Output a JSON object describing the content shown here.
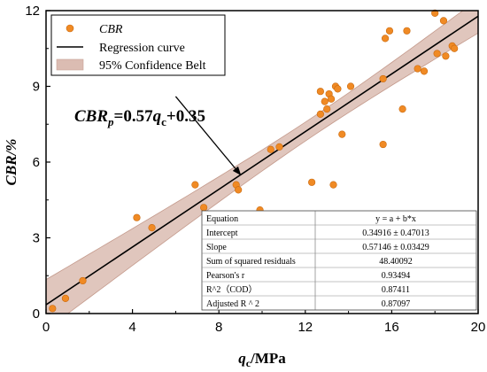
{
  "chart_data": {
    "type": "scatter",
    "title": "",
    "xlabel_main": "q",
    "xlabel_sub": "c",
    "xlabel_unit": "/MPa",
    "ylabel": "CBR/%",
    "xlim": [
      0,
      20
    ],
    "ylim": [
      0,
      12
    ],
    "xticks": [
      0,
      4,
      8,
      12,
      16,
      20
    ],
    "yticks": [
      0,
      3,
      6,
      9,
      12
    ],
    "legend_position": "top-left",
    "series": [
      {
        "name": "CBR",
        "kind": "scatter",
        "color": "#f08a24",
        "points": [
          [
            0.3,
            0.2
          ],
          [
            0.9,
            0.6
          ],
          [
            1.7,
            1.3
          ],
          [
            4.2,
            3.8
          ],
          [
            4.9,
            3.4
          ],
          [
            6.9,
            5.1
          ],
          [
            7.3,
            4.2
          ],
          [
            8.8,
            5.1
          ],
          [
            8.9,
            4.9
          ],
          [
            9.9,
            4.1
          ],
          [
            10.4,
            6.5
          ],
          [
            10.8,
            6.6
          ],
          [
            12.3,
            5.2
          ],
          [
            12.7,
            7.9
          ],
          [
            12.7,
            8.8
          ],
          [
            12.9,
            8.4
          ],
          [
            13.0,
            8.1
          ],
          [
            13.1,
            8.7
          ],
          [
            13.2,
            8.5
          ],
          [
            13.3,
            5.1
          ],
          [
            13.4,
            9.0
          ],
          [
            13.5,
            8.9
          ],
          [
            13.7,
            7.1
          ],
          [
            14.1,
            9.0
          ],
          [
            15.6,
            9.3
          ],
          [
            15.6,
            6.7
          ],
          [
            15.7,
            10.9
          ],
          [
            15.9,
            11.2
          ],
          [
            16.5,
            8.1
          ],
          [
            16.7,
            11.2
          ],
          [
            17.2,
            9.7
          ],
          [
            17.5,
            9.6
          ],
          [
            18.0,
            11.9
          ],
          [
            18.1,
            10.3
          ],
          [
            18.4,
            11.6
          ],
          [
            18.5,
            10.2
          ],
          [
            18.8,
            10.6
          ],
          [
            18.9,
            10.5
          ]
        ]
      },
      {
        "name": "Regression curve",
        "kind": "line",
        "color": "#000000",
        "intercept": 0.34916,
        "slope": 0.57146
      },
      {
        "name": "95% Confidence Belt",
        "kind": "band",
        "color": "#dbbcb2"
      }
    ],
    "annotation": {
      "lhs_main": "CBR",
      "lhs_sub": "p",
      "rhs_pre": "=0.57",
      "rhs_var": "q",
      "rhs_sub": "c",
      "rhs_post": "+0.35",
      "arrow_from": [
        6.0,
        8.6
      ],
      "arrow_to": [
        9.0,
        5.5
      ]
    },
    "stats_table": {
      "header": [
        "Equation",
        "y = a + b*x"
      ],
      "rows": [
        [
          "Intercept",
          "0.34916 ± 0.47013"
        ],
        [
          "Slope",
          "0.57146 ± 0.03429"
        ],
        [
          "Sum of squared residuals",
          "48.40092"
        ],
        [
          "Pearson's r",
          "0.93494"
        ],
        [
          "R^2（COD）",
          "0.87411"
        ],
        [
          "Adjusted R ^ 2",
          "0.87097"
        ]
      ]
    }
  }
}
